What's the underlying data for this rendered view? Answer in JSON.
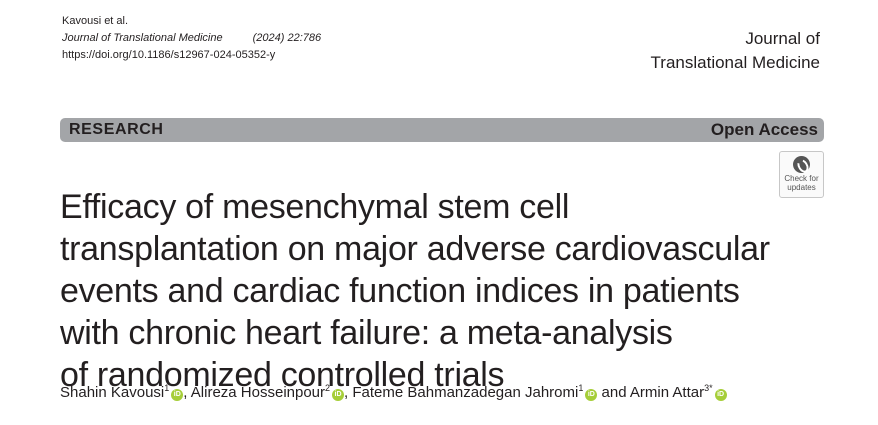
{
  "header": {
    "authors_short": "Kavousi et al.",
    "journal_citation": "Journal of Translational Medicine",
    "volume": "(2024) 22:786",
    "doi": "https://doi.org/10.1186/s12967-024-05352-y",
    "journal_name_line1": "Journal of",
    "journal_name_line2": "Translational Medicine"
  },
  "banner": {
    "label": "RESEARCH",
    "access": "Open Access",
    "color": "#a3a5a8"
  },
  "check_updates": {
    "line1": "Check for",
    "line2": "updates",
    "icon": "check-for-updates-icon"
  },
  "title_lines": [
    "Efficacy of mesenchymal stem cell",
    "transplantation on major adverse cardiovascular",
    "events and cardiac function indices in patients",
    "with chronic heart failure: a meta-analysis",
    "of randomized controlled trials"
  ],
  "authors": [
    {
      "name": "Shahin Kavousi",
      "sup": "1",
      "sep": ", "
    },
    {
      "name": "Alireza Hosseinpour",
      "sup": "2",
      "sep": ", "
    },
    {
      "name": "Fateme Bahmanzadegan Jahromi",
      "sup": "1",
      "sep": " and "
    },
    {
      "name": "Armin Attar",
      "sup": "3*",
      "sep": ""
    }
  ],
  "orcid_label": "iD",
  "orcid_color": "#a6ce39"
}
